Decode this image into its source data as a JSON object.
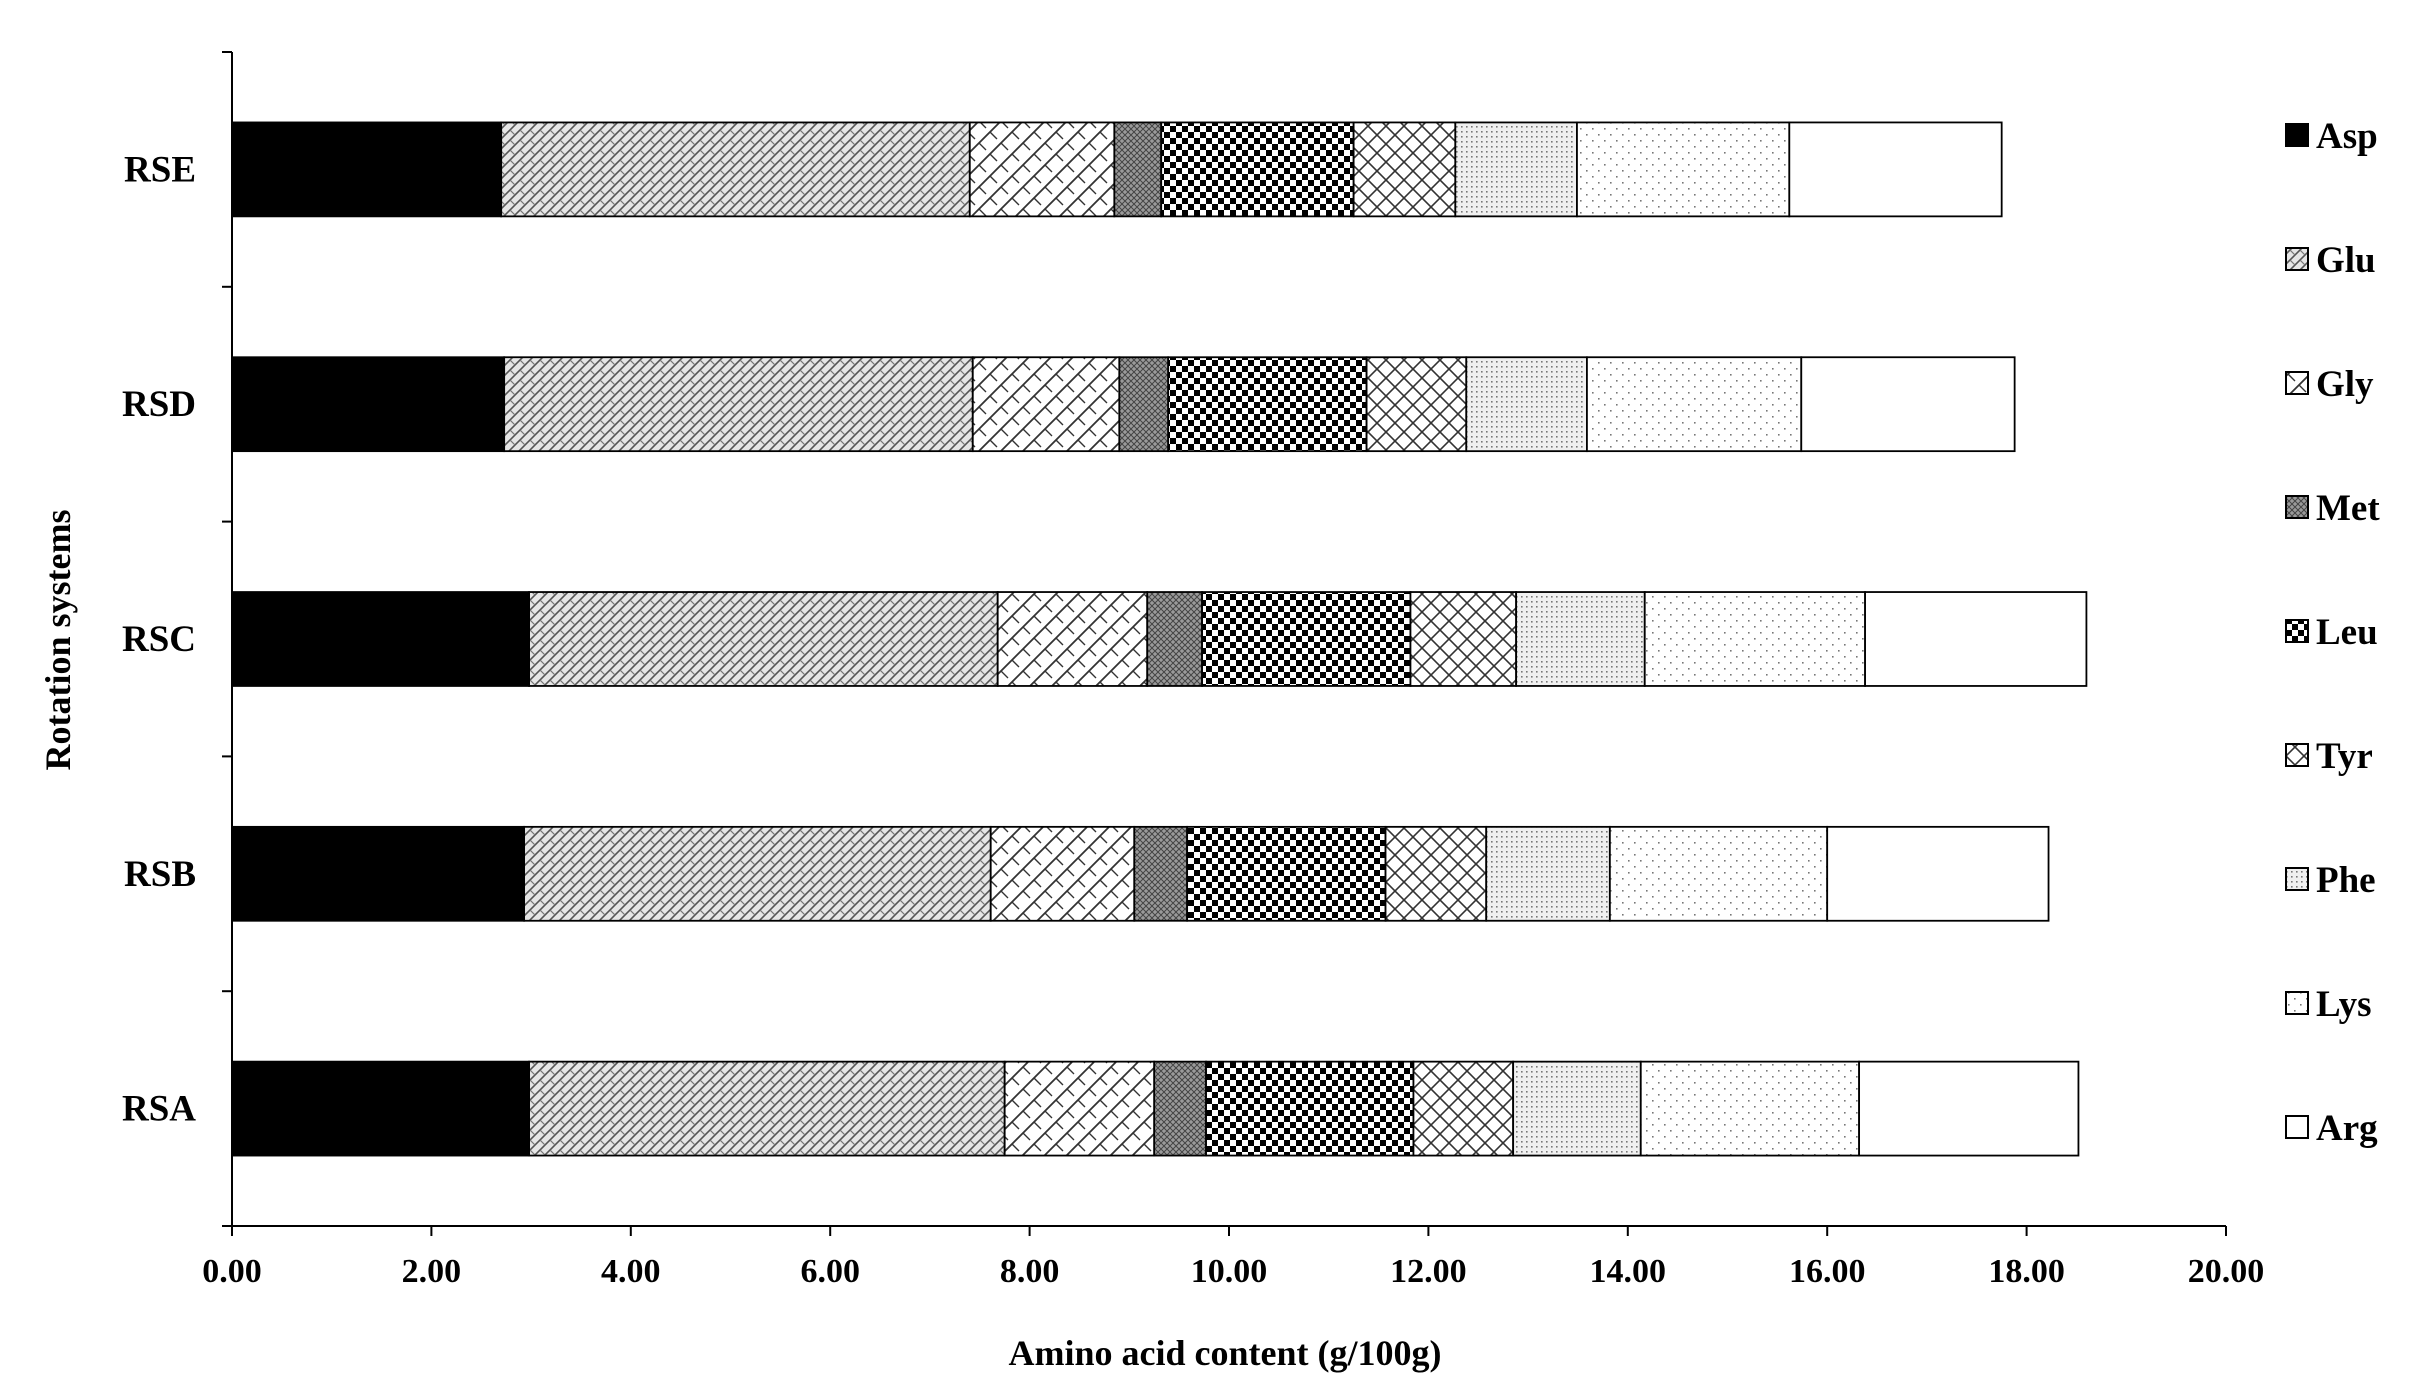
{
  "chart_data": {
    "type": "bar",
    "orientation": "horizontal",
    "stacked": true,
    "categories": [
      "RSA",
      "RSB",
      "RSC",
      "RSD",
      "RSE"
    ],
    "xlabel": "Amino acid content (g/100g)",
    "ylabel": "Rotation systems",
    "xlim": [
      0,
      20
    ],
    "x_ticks": [
      "0.00",
      "2.00",
      "4.00",
      "6.00",
      "8.00",
      "10.00",
      "12.00",
      "14.00",
      "16.00",
      "18.00",
      "20.00"
    ],
    "grid": false,
    "legend_position": "right",
    "series": [
      {
        "name": "Asp",
        "pattern": "solid-black",
        "values": [
          2.98,
          2.93,
          2.98,
          2.73,
          2.7
        ]
      },
      {
        "name": "Glu",
        "pattern": "diagonal-weave",
        "values": [
          4.77,
          4.68,
          4.7,
          4.7,
          4.7
        ]
      },
      {
        "name": "Gly",
        "pattern": "diagonal-hatch",
        "values": [
          1.5,
          1.44,
          1.5,
          1.47,
          1.45
        ]
      },
      {
        "name": "Met",
        "pattern": "dense-grey",
        "values": [
          0.52,
          0.53,
          0.55,
          0.49,
          0.47
        ]
      },
      {
        "name": "Leu",
        "pattern": "checkerboard",
        "values": [
          2.08,
          1.99,
          2.09,
          1.99,
          1.93
        ]
      },
      {
        "name": "Tyr",
        "pattern": "cross-hatch",
        "values": [
          1.0,
          1.01,
          1.06,
          1.0,
          1.02
        ]
      },
      {
        "name": "Phe",
        "pattern": "grey-dots",
        "values": [
          1.28,
          1.24,
          1.29,
          1.21,
          1.22
        ]
      },
      {
        "name": "Lys",
        "pattern": "sparse-dots",
        "values": [
          2.19,
          2.18,
          2.21,
          2.15,
          2.13
        ]
      },
      {
        "name": "Arg",
        "pattern": "white",
        "values": [
          2.2,
          2.22,
          2.22,
          2.14,
          2.13
        ]
      }
    ]
  },
  "colors": {
    "axis": "#000000",
    "bar_outline": "#000000",
    "background": "#ffffff"
  }
}
